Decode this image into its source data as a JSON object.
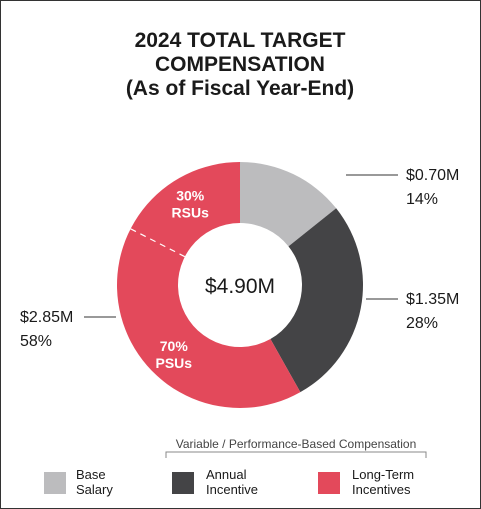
{
  "chart_data": {
    "type": "donut",
    "title_lines": [
      "2024 TOTAL TARGET",
      "COMPENSATION",
      "(As of Fiscal Year-End)"
    ],
    "center_label": "$4.90M",
    "slices": [
      {
        "name": "Base Salary",
        "value": 0.7,
        "percent": 14,
        "value_label": "$0.70M",
        "percent_label": "14%",
        "color": "#bcbcbe"
      },
      {
        "name": "Annual Incentive",
        "value": 1.35,
        "percent": 28,
        "value_label": "$1.35M",
        "percent_label": "28%",
        "color": "#444446"
      },
      {
        "name": "Long-Term Incentives",
        "value": 2.85,
        "percent": 58,
        "value_label": "$2.85M",
        "percent_label": "58%",
        "color": "#e3495b",
        "sub_slices": [
          {
            "name": "PSUs",
            "share": 70,
            "label_lines": [
              "70%",
              "PSUs"
            ]
          },
          {
            "name": "RSUs",
            "share": 30,
            "label_lines": [
              "30%",
              "RSUs"
            ]
          }
        ]
      }
    ],
    "bracket_label": "Variable / Performance-Based Compensation",
    "legend": [
      {
        "lines": [
          "Base",
          "Salary"
        ],
        "color": "#bcbcbe"
      },
      {
        "lines": [
          "Annual",
          "Incentive"
        ],
        "color": "#444446"
      },
      {
        "lines": [
          "Long-Term",
          "Incentives"
        ],
        "color": "#e3495b"
      }
    ]
  }
}
